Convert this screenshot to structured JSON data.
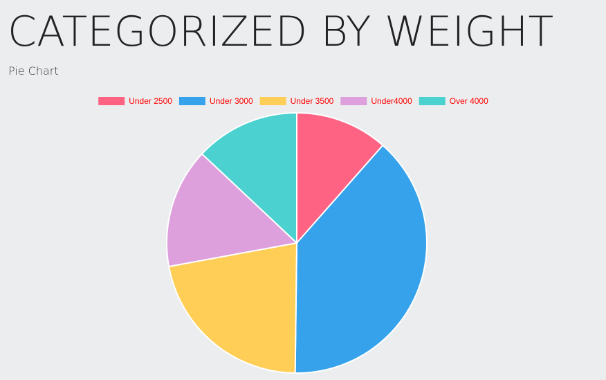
{
  "header": {
    "title": "CATEGORIZED BY WEIGHT",
    "subtitle": "Pie Chart"
  },
  "chart_data": {
    "type": "pie",
    "categories": [
      "Under 2500",
      "Under 3000",
      "Under 3500",
      "Under4000",
      "Over 4000"
    ],
    "values": [
      11.5,
      38.7,
      21.9,
      14.9,
      13.0
    ],
    "colors": [
      "#ff6384",
      "#36a2eb",
      "#ffce56",
      "#dda0dd",
      "#4bd1cf"
    ],
    "legend_text_color": "#ff0000",
    "legend_position": "top"
  }
}
